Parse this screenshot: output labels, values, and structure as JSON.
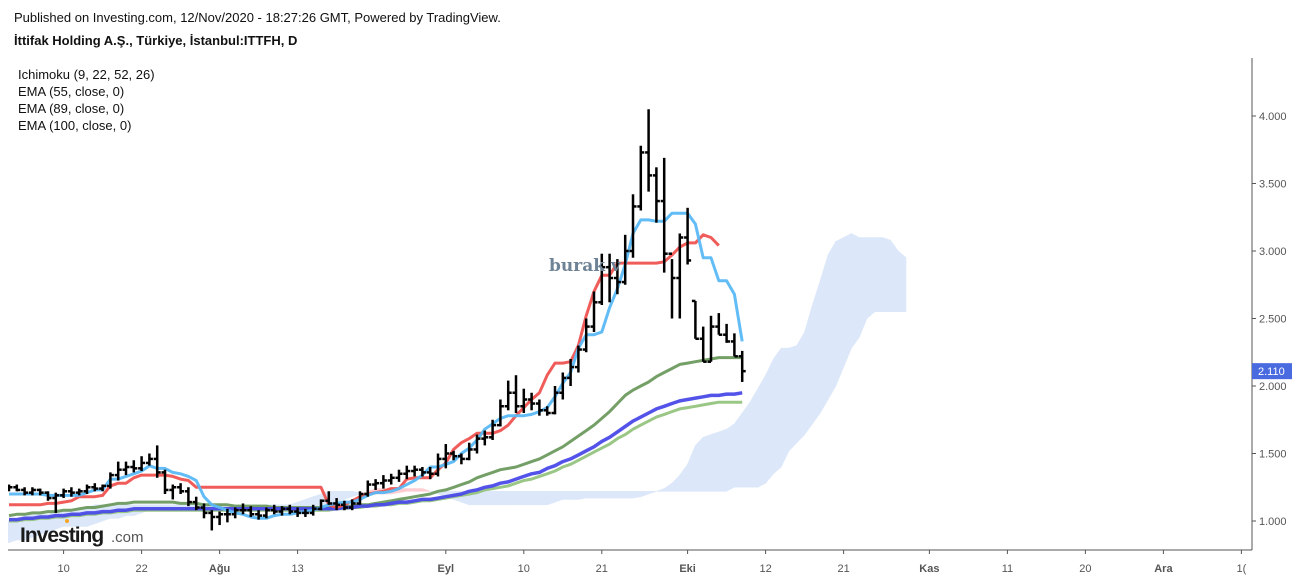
{
  "header": {
    "published": "Published on Investing.com, 12/Nov/2020 - 18:27:26 GMT, Powered by TradingView.",
    "title": "İttifak Holding A.Ş., Türkiye, İstanbul:ITTFH, D"
  },
  "legend": [
    "Ichimoku (9, 22, 52, 26)",
    "EMA (55, close, 0)",
    "EMA (89, close, 0)",
    "EMA (100, close, 0)"
  ],
  "watermark": "burak v",
  "logo": {
    "main": "Investing",
    "suffix": ".com"
  },
  "colors": {
    "bars": "#000000",
    "tenkan": "#5ab8f5",
    "kijun": "#ef5350",
    "ema55": "#6d9a5e",
    "ema89": "#4a4ae8",
    "ema100": "#95c47e",
    "cloud_bull": "#dce8f9",
    "cloud_bear": "#ffcdd2",
    "last_price_bg": "#4a6ae0",
    "axis": "#555555"
  },
  "chart_data": {
    "type": "ohlc",
    "title": "İttifak Holding A.Ş., Türkiye, İstanbul:ITTFH, D",
    "ylim": [
      0.8,
      4.4
    ],
    "y_ticks": [
      "1.000",
      "1.500",
      "2.000",
      "2.500",
      "3.000",
      "3.500",
      "4.000"
    ],
    "y_tick_values": [
      1.0,
      1.5,
      2.0,
      2.5,
      3.0,
      3.5,
      4.0
    ],
    "x_ticks": [
      "10",
      "22",
      "Ağu",
      "13",
      "Eyl",
      "10",
      "21",
      "Eki",
      "12",
      "21",
      "Kas",
      "11",
      "20",
      "Ara",
      "1("
    ],
    "x_tick_bold": [
      false,
      false,
      true,
      false,
      true,
      false,
      false,
      true,
      false,
      false,
      true,
      false,
      false,
      true,
      false
    ],
    "x_tick_index": [
      7,
      17,
      27,
      37,
      56,
      66,
      76,
      87,
      97,
      107,
      118,
      128,
      138,
      148,
      158
    ],
    "last_price": "2.110",
    "last_price_value": 2.11,
    "bars": [
      [
        1.24,
        1.27,
        1.22,
        1.25
      ],
      [
        1.25,
        1.27,
        1.22,
        1.23
      ],
      [
        1.23,
        1.25,
        1.19,
        1.21
      ],
      [
        1.21,
        1.25,
        1.19,
        1.23
      ],
      [
        1.23,
        1.24,
        1.19,
        1.21
      ],
      [
        1.21,
        1.22,
        1.15,
        1.17
      ],
      [
        1.17,
        1.21,
        1.06,
        1.19
      ],
      [
        1.19,
        1.24,
        1.17,
        1.22
      ],
      [
        1.22,
        1.25,
        1.18,
        1.21
      ],
      [
        1.21,
        1.24,
        1.19,
        1.22
      ],
      [
        1.22,
        1.27,
        1.2,
        1.25
      ],
      [
        1.25,
        1.28,
        1.22,
        1.24
      ],
      [
        1.24,
        1.27,
        1.22,
        1.26
      ],
      [
        1.26,
        1.36,
        1.24,
        1.34
      ],
      [
        1.34,
        1.44,
        1.3,
        1.38
      ],
      [
        1.38,
        1.44,
        1.34,
        1.4
      ],
      [
        1.4,
        1.45,
        1.36,
        1.39
      ],
      [
        1.39,
        1.48,
        1.37,
        1.43
      ],
      [
        1.43,
        1.5,
        1.41,
        1.46
      ],
      [
        1.46,
        1.56,
        1.32,
        1.36
      ],
      [
        1.36,
        1.38,
        1.2,
        1.23
      ],
      [
        1.23,
        1.27,
        1.16,
        1.25
      ],
      [
        1.25,
        1.28,
        1.2,
        1.22
      ],
      [
        1.22,
        1.25,
        1.11,
        1.14
      ],
      [
        1.14,
        1.18,
        1.08,
        1.1
      ],
      [
        1.1,
        1.13,
        1.02,
        1.06
      ],
      [
        1.06,
        1.08,
        0.93,
        1.03
      ],
      [
        1.03,
        1.07,
        0.97,
        1.05
      ],
      [
        1.05,
        1.09,
        0.99,
        1.05
      ],
      [
        1.05,
        1.1,
        1.02,
        1.08
      ],
      [
        1.08,
        1.13,
        1.05,
        1.08
      ],
      [
        1.08,
        1.11,
        1.03,
        1.05
      ],
      [
        1.05,
        1.08,
        1.01,
        1.04
      ],
      [
        1.04,
        1.1,
        1.02,
        1.08
      ],
      [
        1.08,
        1.12,
        1.05,
        1.07
      ],
      [
        1.07,
        1.11,
        1.04,
        1.09
      ],
      [
        1.09,
        1.12,
        1.05,
        1.07
      ],
      [
        1.07,
        1.1,
        1.03,
        1.06
      ],
      [
        1.06,
        1.09,
        1.03,
        1.06
      ],
      [
        1.06,
        1.12,
        1.04,
        1.09
      ],
      [
        1.09,
        1.16,
        1.08,
        1.15
      ],
      [
        1.15,
        1.22,
        1.12,
        1.13
      ],
      [
        1.13,
        1.17,
        1.08,
        1.12
      ],
      [
        1.12,
        1.15,
        1.08,
        1.1
      ],
      [
        1.1,
        1.16,
        1.08,
        1.13
      ],
      [
        1.13,
        1.22,
        1.12,
        1.2
      ],
      [
        1.2,
        1.3,
        1.18,
        1.27
      ],
      [
        1.27,
        1.31,
        1.23,
        1.28
      ],
      [
        1.28,
        1.34,
        1.24,
        1.3
      ],
      [
        1.3,
        1.35,
        1.27,
        1.32
      ],
      [
        1.32,
        1.38,
        1.29,
        1.35
      ],
      [
        1.35,
        1.41,
        1.31,
        1.37
      ],
      [
        1.37,
        1.41,
        1.33,
        1.38
      ],
      [
        1.38,
        1.4,
        1.33,
        1.36
      ],
      [
        1.36,
        1.4,
        1.31,
        1.35
      ],
      [
        1.35,
        1.5,
        1.33,
        1.46
      ],
      [
        1.46,
        1.57,
        1.39,
        1.5
      ],
      [
        1.5,
        1.52,
        1.45,
        1.48
      ],
      [
        1.48,
        1.5,
        1.42,
        1.46
      ],
      [
        1.46,
        1.58,
        1.45,
        1.53
      ],
      [
        1.53,
        1.64,
        1.5,
        1.61
      ],
      [
        1.61,
        1.67,
        1.56,
        1.62
      ],
      [
        1.62,
        1.75,
        1.6,
        1.71
      ],
      [
        1.71,
        1.9,
        1.7,
        1.85
      ],
      [
        1.85,
        2.04,
        1.82,
        1.95
      ],
      [
        1.95,
        2.08,
        1.8,
        1.85
      ],
      [
        1.85,
        1.98,
        1.8,
        1.9
      ],
      [
        1.9,
        1.95,
        1.82,
        1.87
      ],
      [
        1.87,
        1.9,
        1.78,
        1.82
      ],
      [
        1.82,
        1.85,
        1.78,
        1.8
      ],
      [
        1.8,
        2.0,
        1.79,
        1.95
      ],
      [
        1.95,
        2.1,
        1.9,
        2.06
      ],
      [
        2.06,
        2.2,
        2.0,
        2.14
      ],
      [
        2.14,
        2.3,
        2.1,
        2.27
      ],
      [
        2.27,
        2.5,
        2.25,
        2.44
      ],
      [
        2.44,
        2.7,
        2.4,
        2.62
      ],
      [
        2.62,
        2.98,
        2.6,
        2.88
      ],
      [
        2.88,
        2.98,
        2.62,
        2.8
      ],
      [
        2.8,
        2.94,
        2.68,
        2.77
      ],
      [
        2.77,
        3.12,
        2.75,
        3.0
      ],
      [
        3.0,
        3.42,
        2.95,
        3.33
      ],
      [
        3.33,
        3.78,
        3.3,
        3.73
      ],
      [
        3.73,
        4.05,
        3.44,
        3.56
      ],
      [
        3.56,
        3.62,
        3.21,
        3.37
      ],
      [
        3.37,
        3.69,
        2.84,
        2.98
      ],
      [
        2.98,
        2.94,
        2.5,
        2.8
      ],
      [
        2.8,
        3.13,
        2.5,
        3.1
      ],
      [
        3.1,
        3.32,
        2.9,
        2.93
      ],
      [
        2.63,
        2.63,
        2.35,
        2.35
      ],
      [
        2.35,
        2.44,
        2.18,
        2.18
      ],
      [
        2.18,
        2.52,
        2.18,
        2.44
      ],
      [
        2.44,
        2.54,
        2.38,
        2.38
      ],
      [
        2.38,
        2.46,
        2.32,
        2.33
      ],
      [
        2.33,
        2.39,
        2.22,
        2.22
      ],
      [
        2.22,
        2.26,
        2.03,
        2.11
      ]
    ],
    "tenkan_sen": [
      1.2,
      1.2,
      1.2,
      1.2,
      1.2,
      1.19,
      1.19,
      1.19,
      1.19,
      1.19,
      1.21,
      1.23,
      1.23,
      1.31,
      1.31,
      1.33,
      1.35,
      1.37,
      1.41,
      1.39,
      1.39,
      1.36,
      1.35,
      1.33,
      1.3,
      1.18,
      1.12,
      1.1,
      1.08,
      1.06,
      1.05,
      1.03,
      1.02,
      1.02,
      1.04,
      1.05,
      1.05,
      1.06,
      1.07,
      1.08,
      1.1,
      1.12,
      1.13,
      1.14,
      1.14,
      1.16,
      1.19,
      1.21,
      1.21,
      1.22,
      1.24,
      1.27,
      1.3,
      1.34,
      1.4,
      1.4,
      1.42,
      1.44,
      1.5,
      1.54,
      1.6,
      1.68,
      1.72,
      1.76,
      1.78,
      1.78,
      1.78,
      1.79,
      1.81,
      1.84,
      1.92,
      2.02,
      2.1,
      2.28,
      2.38,
      2.38,
      2.4,
      2.58,
      2.72,
      2.9,
      3.13,
      3.23,
      3.23,
      3.22,
      3.22,
      3.28,
      3.28,
      3.28,
      3.2,
      2.95,
      2.95,
      2.78,
      2.78,
      2.68,
      2.33
    ],
    "kijun_sen": [
      1.12,
      1.12,
      1.12,
      1.12,
      1.12,
      1.13,
      1.13,
      1.14,
      1.15,
      1.18,
      1.18,
      1.18,
      1.19,
      1.26,
      1.28,
      1.28,
      1.32,
      1.34,
      1.34,
      1.34,
      1.34,
      1.33,
      1.31,
      1.3,
      1.25,
      1.25,
      1.25,
      1.25,
      1.25,
      1.25,
      1.25,
      1.25,
      1.25,
      1.25,
      1.25,
      1.25,
      1.25,
      1.25,
      1.25,
      1.25,
      1.25,
      1.12,
      1.1,
      1.12,
      1.15,
      1.18,
      1.2,
      1.21,
      1.22,
      1.24,
      1.24,
      1.31,
      1.32,
      1.32,
      1.32,
      1.38,
      1.43,
      1.53,
      1.58,
      1.61,
      1.65,
      1.65,
      1.65,
      1.67,
      1.71,
      1.78,
      1.84,
      1.9,
      1.95,
      2.08,
      2.17,
      2.17,
      2.18,
      2.3,
      2.52,
      2.7,
      2.82,
      2.82,
      2.91,
      2.91,
      2.91,
      2.91,
      2.91,
      2.91,
      2.92,
      2.97,
      3.03,
      3.06,
      3.06,
      3.12,
      3.1,
      3.04
    ],
    "ema55": [
      1.04,
      1.05,
      1.05,
      1.06,
      1.06,
      1.07,
      1.07,
      1.08,
      1.08,
      1.09,
      1.1,
      1.1,
      1.11,
      1.12,
      1.13,
      1.13,
      1.14,
      1.14,
      1.14,
      1.14,
      1.14,
      1.14,
      1.13,
      1.13,
      1.13,
      1.12,
      1.12,
      1.12,
      1.12,
      1.11,
      1.11,
      1.11,
      1.11,
      1.11,
      1.1,
      1.1,
      1.1,
      1.1,
      1.1,
      1.1,
      1.1,
      1.1,
      1.1,
      1.11,
      1.11,
      1.12,
      1.12,
      1.13,
      1.14,
      1.15,
      1.16,
      1.17,
      1.18,
      1.19,
      1.2,
      1.22,
      1.23,
      1.25,
      1.27,
      1.29,
      1.32,
      1.34,
      1.36,
      1.38,
      1.39,
      1.4,
      1.42,
      1.44,
      1.46,
      1.49,
      1.52,
      1.55,
      1.59,
      1.63,
      1.67,
      1.71,
      1.76,
      1.81,
      1.87,
      1.93,
      1.97,
      2.0,
      2.03,
      2.07,
      2.1,
      2.13,
      2.16,
      2.17,
      2.18,
      2.19,
      2.2,
      2.21,
      2.21,
      2.21,
      2.21
    ],
    "ema89": [
      1.01,
      1.01,
      1.02,
      1.02,
      1.03,
      1.03,
      1.04,
      1.04,
      1.05,
      1.05,
      1.06,
      1.06,
      1.07,
      1.07,
      1.08,
      1.08,
      1.09,
      1.09,
      1.09,
      1.09,
      1.09,
      1.09,
      1.09,
      1.09,
      1.09,
      1.09,
      1.09,
      1.09,
      1.09,
      1.09,
      1.09,
      1.09,
      1.09,
      1.09,
      1.09,
      1.09,
      1.09,
      1.09,
      1.09,
      1.09,
      1.09,
      1.09,
      1.09,
      1.1,
      1.1,
      1.11,
      1.11,
      1.12,
      1.12,
      1.13,
      1.14,
      1.14,
      1.15,
      1.16,
      1.16,
      1.17,
      1.18,
      1.19,
      1.2,
      1.22,
      1.23,
      1.25,
      1.26,
      1.28,
      1.29,
      1.31,
      1.33,
      1.35,
      1.36,
      1.39,
      1.41,
      1.44,
      1.46,
      1.49,
      1.52,
      1.55,
      1.59,
      1.62,
      1.66,
      1.7,
      1.74,
      1.77,
      1.8,
      1.83,
      1.85,
      1.87,
      1.89,
      1.9,
      1.91,
      1.92,
      1.93,
      1.93,
      1.94,
      1.94,
      1.95
    ],
    "ema100": [
      1.0,
      1.0,
      1.01,
      1.01,
      1.02,
      1.02,
      1.03,
      1.03,
      1.04,
      1.04,
      1.05,
      1.05,
      1.06,
      1.06,
      1.07,
      1.07,
      1.08,
      1.08,
      1.08,
      1.08,
      1.08,
      1.08,
      1.08,
      1.08,
      1.08,
      1.08,
      1.08,
      1.08,
      1.08,
      1.08,
      1.08,
      1.08,
      1.08,
      1.08,
      1.08,
      1.08,
      1.08,
      1.08,
      1.08,
      1.08,
      1.08,
      1.08,
      1.09,
      1.09,
      1.1,
      1.1,
      1.11,
      1.11,
      1.12,
      1.12,
      1.13,
      1.13,
      1.14,
      1.15,
      1.15,
      1.16,
      1.17,
      1.18,
      1.19,
      1.2,
      1.21,
      1.23,
      1.24,
      1.25,
      1.26,
      1.28,
      1.3,
      1.31,
      1.33,
      1.35,
      1.37,
      1.4,
      1.42,
      1.45,
      1.48,
      1.51,
      1.54,
      1.57,
      1.61,
      1.64,
      1.68,
      1.71,
      1.74,
      1.77,
      1.79,
      1.81,
      1.83,
      1.84,
      1.85,
      1.86,
      1.87,
      1.88,
      1.88,
      1.88,
      1.88
    ],
    "cloud_span_a": [
      1.0,
      1.0,
      1.0,
      1.0,
      1.0,
      1.05,
      1.05,
      1.05,
      1.05,
      1.07,
      1.08,
      1.08,
      1.1,
      1.1,
      1.12,
      1.12,
      1.12,
      1.12,
      1.12,
      1.12,
      1.12,
      1.12,
      1.12,
      1.12,
      1.12,
      1.12,
      1.12,
      1.12,
      1.12,
      1.12,
      1.12,
      1.12,
      1.12,
      1.12,
      1.12,
      1.12,
      1.12,
      1.12,
      1.12,
      1.12,
      1.14,
      1.16,
      1.18,
      1.2,
      1.22,
      1.22,
      1.22,
      1.22,
      1.21,
      1.2,
      1.2,
      1.2,
      1.2,
      1.21,
      1.22,
      1.22,
      1.22,
      1.22,
      1.22,
      1.22,
      1.22,
      1.22,
      1.22,
      1.22,
      1.22,
      1.22,
      1.22,
      1.22,
      1.22,
      1.22,
      1.22,
      1.22,
      1.22,
      1.22,
      1.22,
      1.22,
      1.22,
      1.22,
      1.22,
      1.22,
      1.22,
      1.22,
      1.22,
      1.22,
      1.22,
      1.22,
      1.22,
      1.24,
      1.28,
      1.34,
      1.42,
      1.56,
      1.62,
      1.64,
      1.66,
      1.68,
      1.72,
      1.8,
      1.88,
      1.98,
      2.08,
      2.2,
      2.28,
      2.28,
      2.3,
      2.4,
      2.6,
      2.78,
      2.97,
      3.07,
      3.1,
      3.13,
      3.1,
      3.1,
      3.1,
      3.1,
      3.08,
      3.0,
      2.95
    ],
    "cloud_span_b": [
      0.84,
      0.84,
      0.84,
      0.84,
      0.86,
      0.86,
      0.88,
      0.9,
      0.92,
      0.94,
      0.96,
      0.96,
      0.96,
      0.96,
      0.98,
      1.0,
      1.02,
      1.02,
      1.04,
      1.04,
      1.06,
      1.08,
      1.08,
      1.08,
      1.08,
      1.08,
      1.08,
      1.08,
      1.08,
      1.08,
      1.08,
      1.08,
      1.08,
      1.08,
      1.08,
      1.08,
      1.08,
      1.08,
      1.08,
      1.08,
      1.08,
      1.08,
      1.08,
      1.1,
      1.12,
      1.14,
      1.16,
      1.18,
      1.2,
      1.22,
      1.24,
      1.24,
      1.24,
      1.24,
      1.24,
      1.24,
      1.24,
      1.22,
      1.2,
      1.18,
      1.16,
      1.14,
      1.12,
      1.12,
      1.12,
      1.12,
      1.12,
      1.12,
      1.12,
      1.12,
      1.12,
      1.12,
      1.12,
      1.14,
      1.16,
      1.16,
      1.16,
      1.17,
      1.17,
      1.17,
      1.17,
      1.17,
      1.17,
      1.17,
      1.18,
      1.2,
      1.22,
      1.22,
      1.22,
      1.22,
      1.22,
      1.22,
      1.22,
      1.22,
      1.22,
      1.22,
      1.25,
      1.25,
      1.25,
      1.25,
      1.28,
      1.35,
      1.4,
      1.52,
      1.58,
      1.64,
      1.72,
      1.8,
      1.9,
      2.0,
      2.14,
      2.28,
      2.36,
      2.5,
      2.55,
      2.55,
      2.55,
      2.55,
      2.55
    ],
    "cloud_offset_bars": -3
  }
}
